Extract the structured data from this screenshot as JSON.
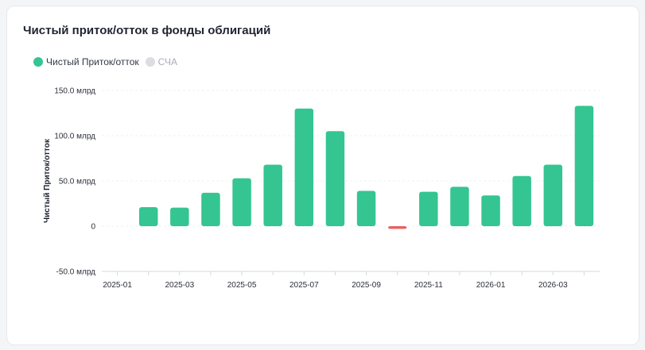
{
  "card": {
    "title": "Чистый приток/отток в фонды облигаций"
  },
  "legend": {
    "items": [
      {
        "label": "Чистый Приток/отток",
        "color": "#34c592",
        "active": true
      },
      {
        "label": "СЧА",
        "color": "#dcdde0",
        "active": false
      }
    ]
  },
  "colors": {
    "positive": "#34c592",
    "negative": "#e8615f",
    "grid": "#eef0f3",
    "axis": "#d5d8de"
  },
  "chart_data": {
    "type": "bar",
    "categories": [
      "2025-01",
      "2025-02",
      "2025-03",
      "2025-04",
      "2025-05",
      "2025-06",
      "2025-07",
      "2025-08",
      "2025-09",
      "2025-10",
      "2025-11",
      "2025-12",
      "2026-01",
      "2026-02",
      "2026-03",
      "2026-04"
    ],
    "x_tick_labels": [
      "2025-01",
      "2025-03",
      "2025-05",
      "2025-07",
      "2025-09",
      "2025-11",
      "2026-01",
      "2026-03"
    ],
    "series": [
      {
        "name": "Чистый Приток/отток",
        "values": [
          0,
          21,
          20.5,
          37,
          53,
          68,
          130,
          105,
          39,
          -3,
          38,
          43.5,
          34,
          55.5,
          68,
          133
        ]
      }
    ],
    "ylabel": "Чистый Приток/отток",
    "y_ticks": [
      150,
      100,
      50,
      0,
      -50
    ],
    "y_tick_labels": [
      "150.0 млрд",
      "100.0 млрд",
      "50.0 млрд",
      "0",
      "-50.0 млрд"
    ],
    "ylim": [
      -50,
      150
    ],
    "grid": true,
    "legend_position": "top-left"
  }
}
